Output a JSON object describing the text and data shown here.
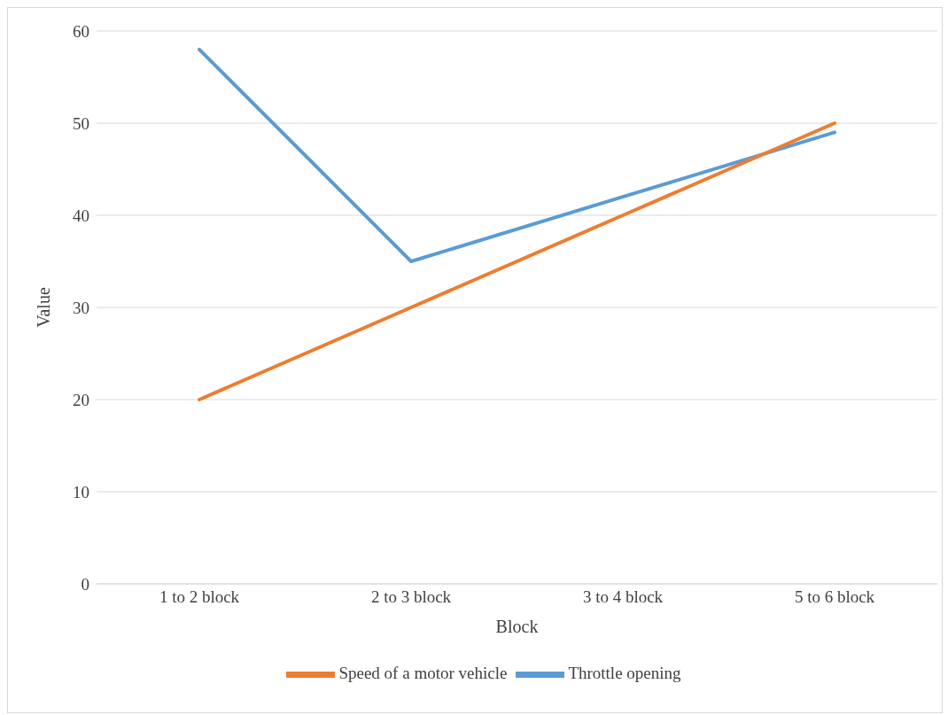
{
  "chart_data": {
    "type": "line",
    "xlabel": "Block",
    "ylabel": "Value",
    "categories": [
      "1 to 2 block",
      "2 to 3 block",
      "3 to 4 block",
      "5 to 6 block"
    ],
    "series": [
      {
        "name": "Throttle opening",
        "color": "#5b9bd5",
        "values": [
          58,
          35,
          42,
          49
        ]
      },
      {
        "name": "Speed of a motor vehicle",
        "color": "#ed7d31",
        "values": [
          20,
          30,
          40,
          50
        ]
      }
    ],
    "ylim": [
      0,
      60
    ],
    "yticks": [
      0,
      10,
      20,
      30,
      40,
      50,
      60
    ],
    "grid": "y",
    "legend": "bottom",
    "marker": "none",
    "line_style": "solid"
  }
}
